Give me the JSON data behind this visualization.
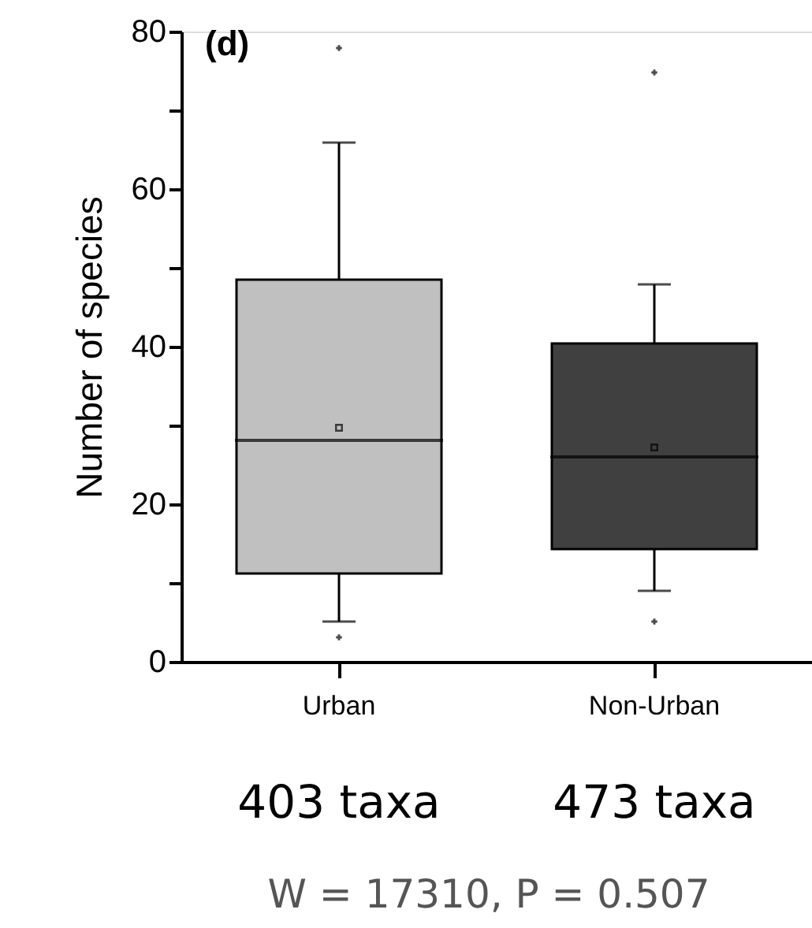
{
  "chart_data": {
    "type": "box",
    "ylabel": "Number of species",
    "categories": [
      "Urban",
      "Non-Urban"
    ],
    "colors": [
      "#c0c0c0",
      "#404040"
    ],
    "boxes": [
      {
        "low": 5.1,
        "q1": 11.2,
        "median": 28.1,
        "q3": 48.5,
        "high": 65.9,
        "mean": 29.7,
        "outliers": [
          77.9,
          3.1
        ]
      },
      {
        "low": 9.0,
        "q1": 14.3,
        "median": 26.0,
        "q3": 40.4,
        "high": 47.9,
        "mean": 27.2,
        "outliers": [
          74.8,
          5.1
        ]
      }
    ],
    "ylim": [
      0,
      80
    ],
    "yticks": [
      0,
      {
        "value": 10,
        "label": null
      },
      20,
      {
        "value": 30,
        "label": null
      },
      40,
      {
        "value": 50,
        "label": null
      },
      60,
      {
        "value": 70,
        "label": null
      },
      80
    ],
    "grid": false,
    "annotations": [
      "(d)",
      "403 taxa",
      "473 taxa",
      "W = 17310, P = 0.507"
    ]
  }
}
